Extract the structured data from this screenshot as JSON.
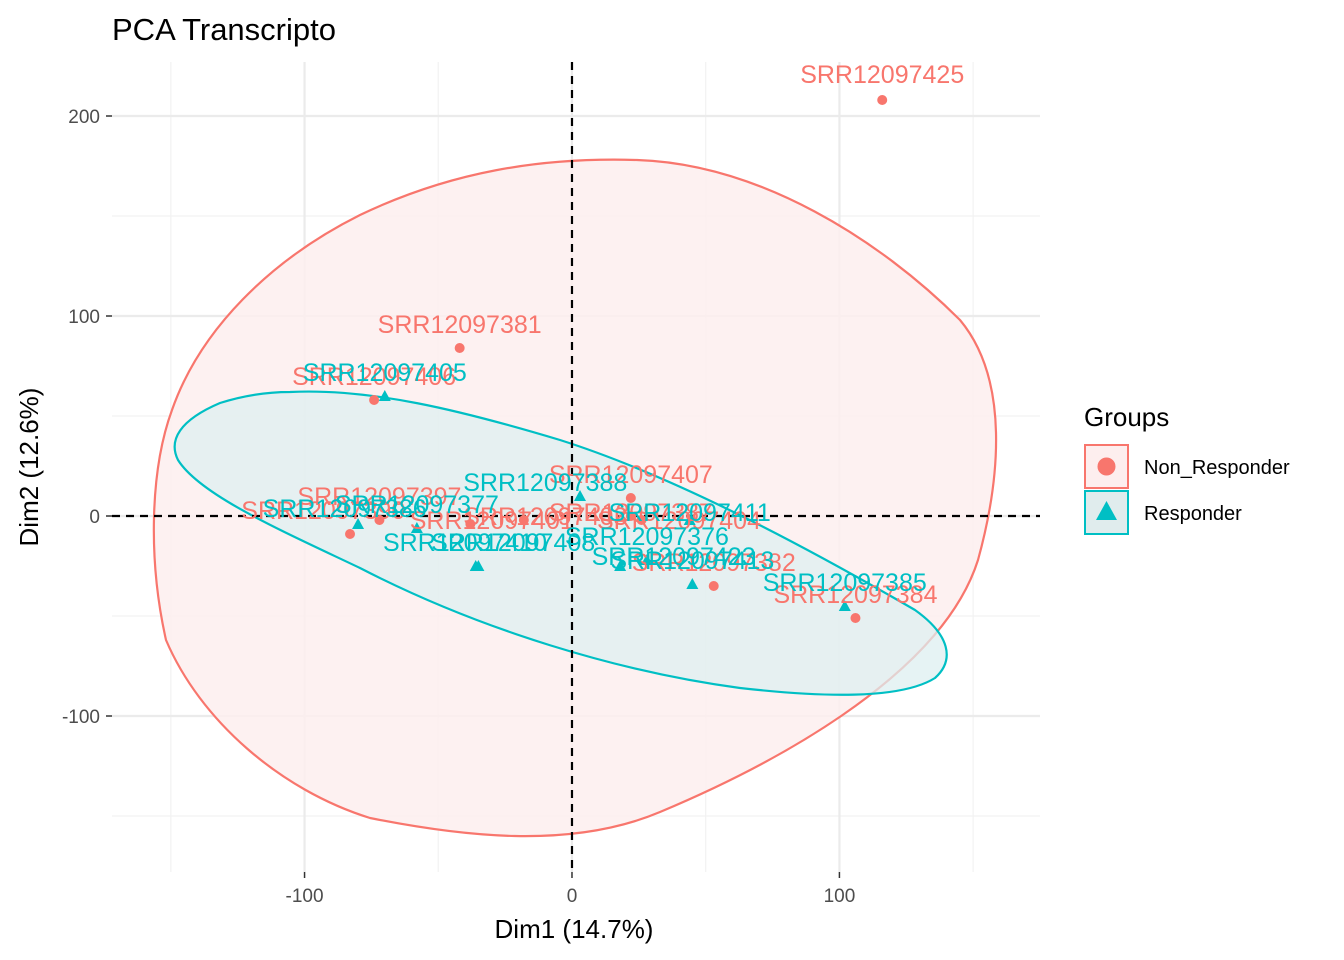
{
  "chart_data": {
    "type": "scatter",
    "title": "PCA Transcripto",
    "xlabel": "Dim1 (14.7%)",
    "ylabel": "Dim2 (12.6%)",
    "xlim": [
      -172,
      175
    ],
    "ylim": [
      -178,
      227
    ],
    "x_ticks": [
      -100,
      0,
      100
    ],
    "y_ticks": [
      -100,
      0,
      100,
      200
    ],
    "x_tick_labels": [
      "-100",
      "0",
      "100"
    ],
    "y_tick_labels": [
      "-100",
      "0",
      "100",
      "200"
    ],
    "grid": true,
    "reference_lines": {
      "x": 0,
      "y": 0,
      "style": "dashed"
    },
    "legend": {
      "title": "Groups",
      "position": "right",
      "entries": [
        {
          "name": "Non_Responder",
          "color": "#F8766D",
          "shape": "circle"
        },
        {
          "name": "Responder",
          "color": "#00BFC4",
          "shape": "triangle"
        }
      ]
    },
    "series": [
      {
        "name": "Non_Responder",
        "color": "#F8766D",
        "shape": "circle",
        "points": [
          {
            "label": "SRR12097425",
            "x": 116,
            "y": 208,
            "lx": 116,
            "ly": 221
          },
          {
            "label": "SRR12097381",
            "x": -42,
            "y": 84,
            "lx": -42,
            "ly": 96
          },
          {
            "label": "SRR12097406",
            "x": -74,
            "y": 58,
            "lx": -74,
            "ly": 70
          },
          {
            "label": "SRR12097407",
            "x": 22,
            "y": 9,
            "lx": 22,
            "ly": 21
          },
          {
            "label": "SRR12097397",
            "x": -72,
            "y": -2,
            "lx": -72,
            "ly": 10
          },
          {
            "label": "SRR12097390",
            "x": -83,
            "y": -9,
            "lx": -93,
            "ly": 3
          },
          {
            "label": "SRR12097401",
            "x": -38,
            "y": -4,
            "lx": -30,
            "ly": -2
          },
          {
            "label": "SRR12097403",
            "x": -18,
            "y": -2,
            "lx": -10,
            "ly": 0
          },
          {
            "label": "SRR12097387",
            "x": 22,
            "y": 0,
            "lx": 22,
            "ly": 2
          },
          {
            "label": "SRR12097404",
            "x": 26,
            "y": -2,
            "lx": 40,
            "ly": -2
          },
          {
            "label": "SRR12097382",
            "x": 53,
            "y": -35,
            "lx": 53,
            "ly": -23
          },
          {
            "label": "SRR12097384",
            "x": 106,
            "y": -51,
            "lx": 106,
            "ly": -39
          }
        ]
      },
      {
        "name": "Responder",
        "color": "#00BFC4",
        "shape": "triangle",
        "points": [
          {
            "label": "SRR12097405",
            "x": -70,
            "y": 60,
            "lx": -70,
            "ly": 72
          },
          {
            "label": "SRR12097388",
            "x": 3,
            "y": 10,
            "lx": -10,
            "ly": 17
          },
          {
            "label": "SRR12097377",
            "x": -58,
            "y": -6,
            "lx": -58,
            "ly": 6
          },
          {
            "label": "SRR12097386",
            "x": -80,
            "y": -4,
            "lx": -85,
            "ly": 4
          },
          {
            "label": "SRR12097410",
            "x": -35,
            "y": -25,
            "lx": -40,
            "ly": -13
          },
          {
            "label": "SRR12097408",
            "x": -36,
            "y": -25,
            "lx": -22,
            "ly": -13
          },
          {
            "label": "SRR12097411",
            "x": 44,
            "y": -2,
            "lx": 44,
            "ly": 2
          },
          {
            "label": "SRR12097376",
            "x": 28,
            "y": -22,
            "lx": 28,
            "ly": -10
          },
          {
            "label": "SRR12097423",
            "x": 18,
            "y": -25,
            "lx": 38,
            "ly": -20
          },
          {
            "label": "SRR12097385",
            "x": 102,
            "y": -45,
            "lx": 102,
            "ly": -33
          },
          {
            "label": "SRR12097413",
            "x": 45,
            "y": -34,
            "lx": 45,
            "ly": -22
          }
        ]
      }
    ],
    "ellipses": [
      {
        "group": "Non_Responder",
        "color": "#F8766D",
        "fill": "#FDEEEE"
      },
      {
        "group": "Responder",
        "color": "#00BFC4",
        "fill": "#E0ECED"
      }
    ]
  }
}
